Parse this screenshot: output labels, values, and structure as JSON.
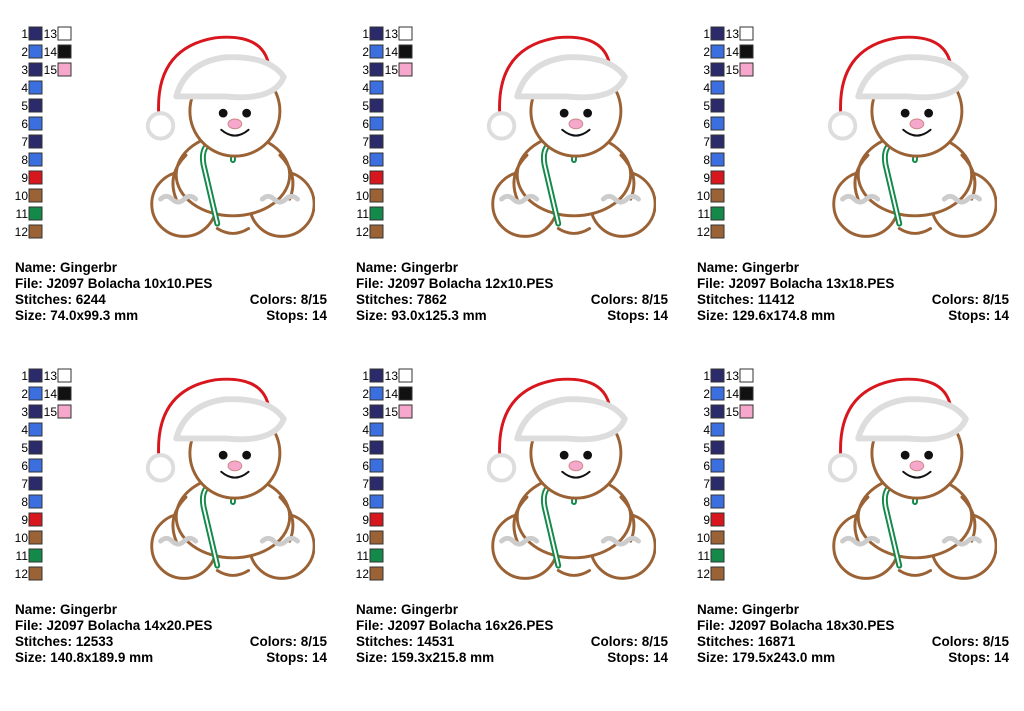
{
  "cards": [
    {
      "swatches": [
        {
          "label": "1",
          "color": "#2b2a6b"
        },
        {
          "label": "2",
          "color": "#3b6fe0"
        },
        {
          "label": "3",
          "color": "#2b2a6b"
        },
        {
          "label": "4",
          "color": "#3b6fe0"
        },
        {
          "label": "5",
          "color": "#2b2a6b"
        },
        {
          "label": "6",
          "color": "#3b6fe0"
        },
        {
          "label": "7",
          "color": "#2b2a6b"
        },
        {
          "label": "8",
          "color": "#3b6fe0"
        },
        {
          "label": "9",
          "color": "#d8161d"
        },
        {
          "label": "10",
          "color": "#9b6335"
        },
        {
          "label": "11",
          "color": "#138a4a"
        },
        {
          "label": "12",
          "color": "#9b6335"
        },
        {
          "label": "13",
          "color": "#ffffff"
        },
        {
          "label": "14",
          "color": "#111111"
        },
        {
          "label": "15",
          "color": "#f5a8cb"
        }
      ],
      "name": "Name: Gingerbr",
      "file": "File: J2097 Bolacha 10x10.PES",
      "stitches": "Stitches: 6244",
      "colors": "Colors: 8/15",
      "size": "Size: 74.0x99.3 mm",
      "stops": "Stops: 14"
    },
    {
      "swatches": [
        {
          "label": "1",
          "color": "#2b2a6b"
        },
        {
          "label": "2",
          "color": "#3b6fe0"
        },
        {
          "label": "3",
          "color": "#2b2a6b"
        },
        {
          "label": "4",
          "color": "#3b6fe0"
        },
        {
          "label": "5",
          "color": "#2b2a6b"
        },
        {
          "label": "6",
          "color": "#3b6fe0"
        },
        {
          "label": "7",
          "color": "#2b2a6b"
        },
        {
          "label": "8",
          "color": "#3b6fe0"
        },
        {
          "label": "9",
          "color": "#d8161d"
        },
        {
          "label": "10",
          "color": "#9b6335"
        },
        {
          "label": "11",
          "color": "#138a4a"
        },
        {
          "label": "12",
          "color": "#9b6335"
        },
        {
          "label": "13",
          "color": "#ffffff"
        },
        {
          "label": "14",
          "color": "#111111"
        },
        {
          "label": "15",
          "color": "#f5a8cb"
        }
      ],
      "name": "Name: Gingerbr",
      "file": "File: J2097 Bolacha 12x10.PES",
      "stitches": "Stitches: 7862",
      "colors": "Colors: 8/15",
      "size": "Size: 93.0x125.3 mm",
      "stops": "Stops: 14"
    },
    {
      "swatches": [
        {
          "label": "1",
          "color": "#2b2a6b"
        },
        {
          "label": "2",
          "color": "#3b6fe0"
        },
        {
          "label": "3",
          "color": "#2b2a6b"
        },
        {
          "label": "4",
          "color": "#3b6fe0"
        },
        {
          "label": "5",
          "color": "#2b2a6b"
        },
        {
          "label": "6",
          "color": "#3b6fe0"
        },
        {
          "label": "7",
          "color": "#2b2a6b"
        },
        {
          "label": "8",
          "color": "#3b6fe0"
        },
        {
          "label": "9",
          "color": "#d8161d"
        },
        {
          "label": "10",
          "color": "#9b6335"
        },
        {
          "label": "11",
          "color": "#138a4a"
        },
        {
          "label": "12",
          "color": "#9b6335"
        },
        {
          "label": "13",
          "color": "#ffffff"
        },
        {
          "label": "14",
          "color": "#111111"
        },
        {
          "label": "15",
          "color": "#f5a8cb"
        }
      ],
      "name": "Name: Gingerbr",
      "file": "File: J2097 Bolacha 13x18.PES",
      "stitches": "Stitches: 11412",
      "colors": "Colors: 8/15",
      "size": "Size: 129.6x174.8 mm",
      "stops": "Stops: 14"
    },
    {
      "swatches": [
        {
          "label": "1",
          "color": "#2b2a6b"
        },
        {
          "label": "2",
          "color": "#3b6fe0"
        },
        {
          "label": "3",
          "color": "#2b2a6b"
        },
        {
          "label": "4",
          "color": "#3b6fe0"
        },
        {
          "label": "5",
          "color": "#2b2a6b"
        },
        {
          "label": "6",
          "color": "#3b6fe0"
        },
        {
          "label": "7",
          "color": "#2b2a6b"
        },
        {
          "label": "8",
          "color": "#3b6fe0"
        },
        {
          "label": "9",
          "color": "#d8161d"
        },
        {
          "label": "10",
          "color": "#9b6335"
        },
        {
          "label": "11",
          "color": "#138a4a"
        },
        {
          "label": "12",
          "color": "#9b6335"
        },
        {
          "label": "13",
          "color": "#ffffff"
        },
        {
          "label": "14",
          "color": "#111111"
        },
        {
          "label": "15",
          "color": "#f5a8cb"
        }
      ],
      "name": "Name: Gingerbr",
      "file": "File: J2097 Bolacha 14x20.PES",
      "stitches": "Stitches: 12533",
      "colors": "Colors: 8/15",
      "size": "Size: 140.8x189.9 mm",
      "stops": "Stops: 14"
    },
    {
      "swatches": [
        {
          "label": "1",
          "color": "#2b2a6b"
        },
        {
          "label": "2",
          "color": "#3b6fe0"
        },
        {
          "label": "3",
          "color": "#2b2a6b"
        },
        {
          "label": "4",
          "color": "#3b6fe0"
        },
        {
          "label": "5",
          "color": "#2b2a6b"
        },
        {
          "label": "6",
          "color": "#3b6fe0"
        },
        {
          "label": "7",
          "color": "#2b2a6b"
        },
        {
          "label": "8",
          "color": "#3b6fe0"
        },
        {
          "label": "9",
          "color": "#d8161d"
        },
        {
          "label": "10",
          "color": "#9b6335"
        },
        {
          "label": "11",
          "color": "#138a4a"
        },
        {
          "label": "12",
          "color": "#9b6335"
        },
        {
          "label": "13",
          "color": "#ffffff"
        },
        {
          "label": "14",
          "color": "#111111"
        },
        {
          "label": "15",
          "color": "#f5a8cb"
        }
      ],
      "name": "Name: Gingerbr",
      "file": "File: J2097 Bolacha 16x26.PES",
      "stitches": "Stitches: 14531",
      "colors": "Colors: 8/15",
      "size": "Size: 159.3x215.8 mm",
      "stops": "Stops: 14"
    },
    {
      "swatches": [
        {
          "label": "1",
          "color": "#2b2a6b"
        },
        {
          "label": "2",
          "color": "#3b6fe0"
        },
        {
          "label": "3",
          "color": "#2b2a6b"
        },
        {
          "label": "4",
          "color": "#3b6fe0"
        },
        {
          "label": "5",
          "color": "#2b2a6b"
        },
        {
          "label": "6",
          "color": "#3b6fe0"
        },
        {
          "label": "7",
          "color": "#2b2a6b"
        },
        {
          "label": "8",
          "color": "#3b6fe0"
        },
        {
          "label": "9",
          "color": "#d8161d"
        },
        {
          "label": "10",
          "color": "#9b6335"
        },
        {
          "label": "11",
          "color": "#138a4a"
        },
        {
          "label": "12",
          "color": "#9b6335"
        },
        {
          "label": "13",
          "color": "#ffffff"
        },
        {
          "label": "14",
          "color": "#111111"
        },
        {
          "label": "15",
          "color": "#f5a8cb"
        }
      ],
      "name": "Name: Gingerbr",
      "file": "File: J2097 Bolacha 18x30.PES",
      "stitches": "Stitches: 16871",
      "colors": "Colors: 8/15",
      "size": "Size: 179.5x243.0 mm",
      "stops": "Stops: 14"
    }
  ]
}
